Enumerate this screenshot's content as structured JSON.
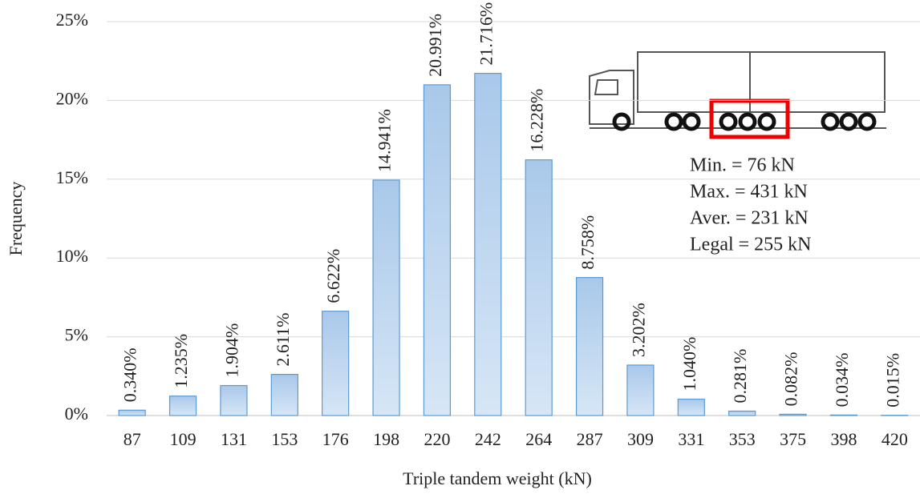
{
  "chart_data": {
    "type": "bar",
    "x_label": "Triple tandem weight (kN)",
    "y_label": "Frequency",
    "categories": [
      "87",
      "109",
      "131",
      "153",
      "176",
      "198",
      "220",
      "242",
      "264",
      "287",
      "309",
      "331",
      "353",
      "375",
      "398",
      "420"
    ],
    "values": [
      0.34,
      1.235,
      1.904,
      2.611,
      6.622,
      14.941,
      20.991,
      21.716,
      16.228,
      8.758,
      3.202,
      1.04,
      0.281,
      0.082,
      0.034,
      0.015
    ],
    "value_labels": [
      "0.340%",
      "1.235%",
      "1.904%",
      "2.611%",
      "6.622%",
      "14.941%",
      "20.991%",
      "21.716%",
      "16.228%",
      "8.758%",
      "3.202%",
      "1.040%",
      "0.281%",
      "0.082%",
      "0.034%",
      "0.015%"
    ],
    "color": "#a9c8ea",
    "ylim": [
      0,
      25
    ],
    "yticks": [
      {
        "value": 0,
        "label": "0%"
      },
      {
        "value": 5,
        "label": "5%"
      },
      {
        "value": 10,
        "label": "10%"
      },
      {
        "value": 15,
        "label": "15%"
      },
      {
        "value": 20,
        "label": "20%"
      },
      {
        "value": 25,
        "label": "25%"
      }
    ],
    "grid": true,
    "annotations": [
      "Min. = 76 kN",
      "Max. = 431 kN",
      "Aver. = 231 kN",
      "Legal = 255 kN"
    ]
  }
}
